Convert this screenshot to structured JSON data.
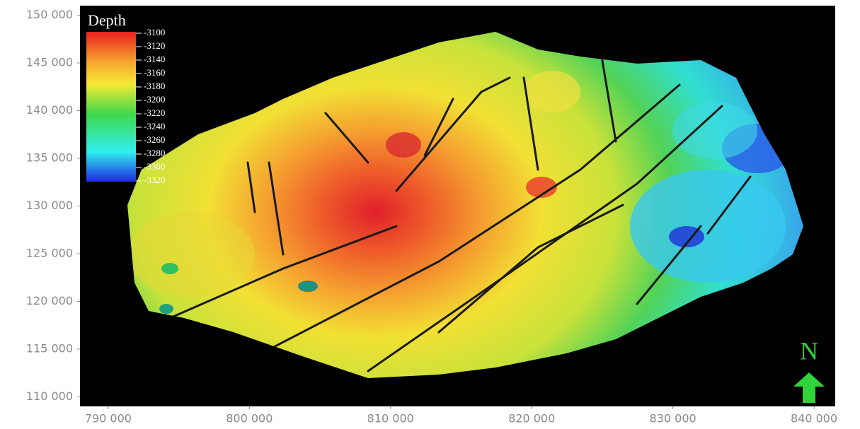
{
  "chart_data": {
    "type": "contour-map",
    "xlim": [
      788000,
      841500
    ],
    "ylim": [
      109000,
      151000
    ],
    "xticks": [
      {
        "value": 790000,
        "label": "790 000"
      },
      {
        "value": 800000,
        "label": "800 000"
      },
      {
        "value": 810000,
        "label": "810 000"
      },
      {
        "value": 820000,
        "label": "820 000"
      },
      {
        "value": 830000,
        "label": "830 000"
      },
      {
        "value": 840000,
        "label": "840 000"
      }
    ],
    "yticks": [
      {
        "value": 110000,
        "label": "110 000"
      },
      {
        "value": 115000,
        "label": "115 000"
      },
      {
        "value": 120000,
        "label": "120 000"
      },
      {
        "value": 125000,
        "label": "125 000"
      },
      {
        "value": 130000,
        "label": "130 000"
      },
      {
        "value": 135000,
        "label": "135 000"
      },
      {
        "value": 140000,
        "label": "140 000"
      },
      {
        "value": 145000,
        "label": "145 000"
      },
      {
        "value": 150000,
        "label": "150 000"
      }
    ],
    "colorbar": {
      "title": "Depth",
      "lim": [
        -3320,
        -3100
      ],
      "ticks": [
        -3100,
        -3120,
        -3140,
        -3160,
        -3180,
        -3200,
        -3220,
        -3240,
        -3260,
        -3280,
        -3300,
        -3320
      ]
    },
    "north_label": "N"
  }
}
